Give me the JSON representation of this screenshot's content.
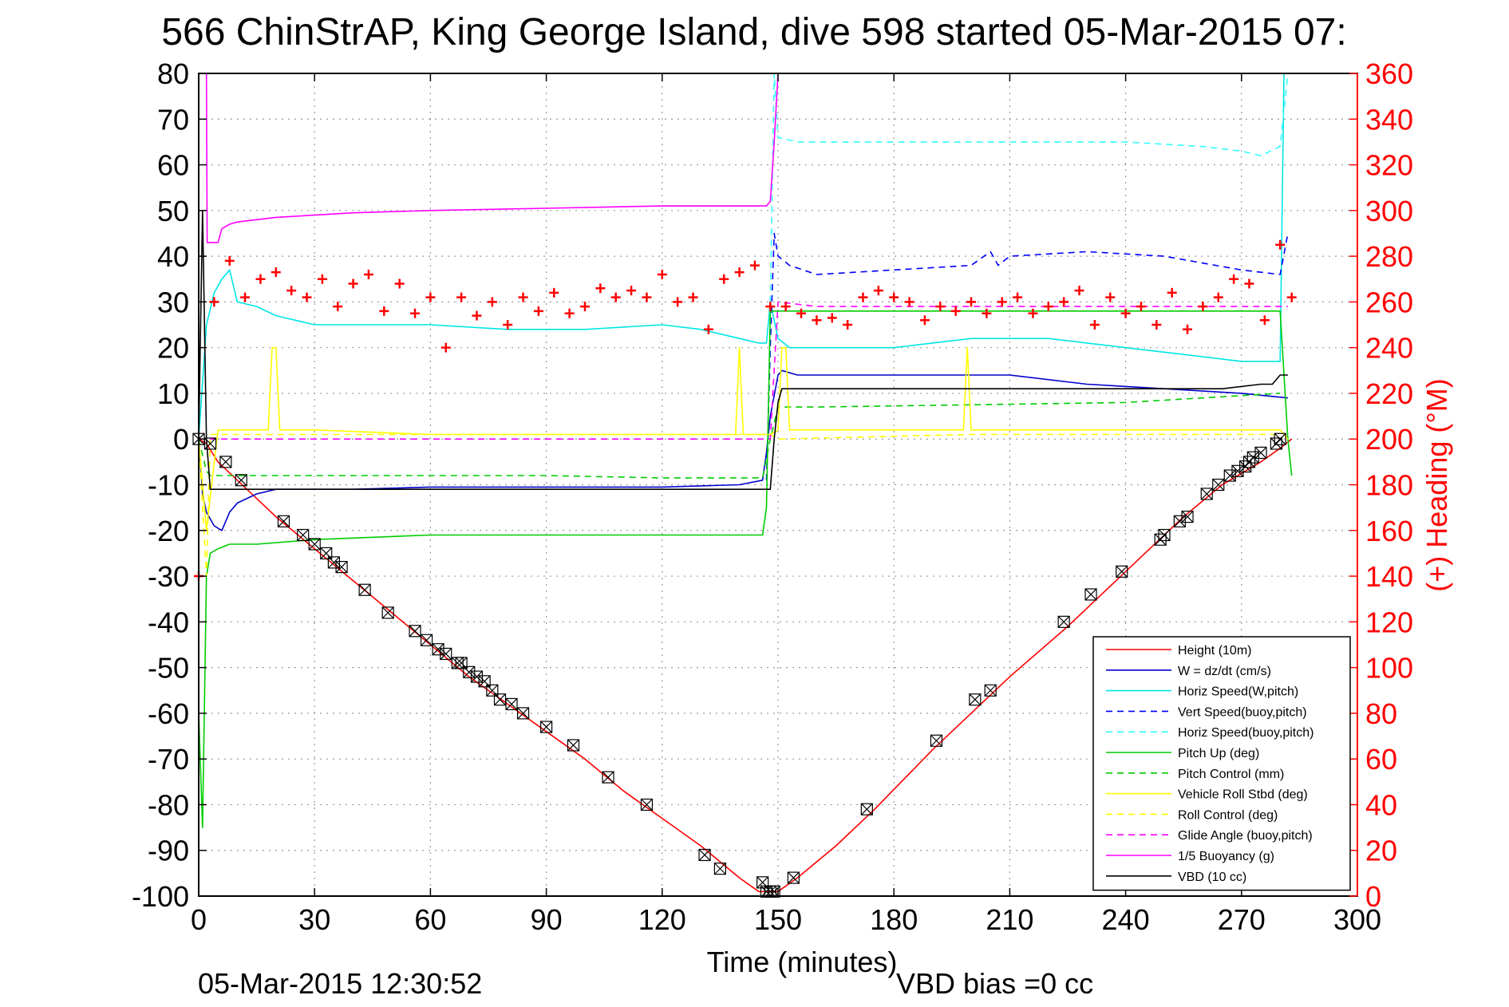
{
  "figure": {
    "title": "566 ChinStrAP, King George Island, dive 598 started 05-Mar-2015 07:",
    "timestamp": "05-Mar-2015 12:30:52",
    "vbd_bias": "VBD bias =0 cc"
  },
  "colors": {
    "height": "#ff0000",
    "w": "#0000cc",
    "horiz_speed": "#00e5e5",
    "vert_speed_buoy": "#0000ff",
    "horiz_speed_buoy": "#33ffff",
    "pitch_up": "#00cc00",
    "pitch_control": "#00cc00",
    "roll": "#ffff00",
    "roll_control": "#ffff00",
    "glide_angle": "#ff00ff",
    "buoyancy": "#ff00ff",
    "vbd": "#000000",
    "heading": "#ff0000",
    "grid": "#999999"
  },
  "chart_data": {
    "type": "line",
    "xlabel": "Time (minutes)",
    "ylabel_right": "(+) Heading (°M)",
    "xlim": [
      0,
      300
    ],
    "ylim": [
      -100,
      80
    ],
    "ylim_right": [
      0,
      360
    ],
    "grid": true,
    "legend_position": "bottom-right",
    "x_ticks": [
      "0",
      "30",
      "60",
      "90",
      "120",
      "150",
      "180",
      "210",
      "240",
      "270",
      "300"
    ],
    "y_ticks": [
      "80",
      "70",
      "60",
      "50",
      "40",
      "30",
      "20",
      "10",
      "0",
      "-10",
      "-20",
      "-30",
      "-40",
      "-50",
      "-60",
      "-70",
      "-80",
      "-90",
      "-100"
    ],
    "y_right_ticks": [
      "360",
      "340",
      "320",
      "300",
      "280",
      "260",
      "240",
      "220",
      "200",
      "180",
      "160",
      "140",
      "120",
      "100",
      "80",
      "60",
      "40",
      "20",
      "0"
    ],
    "series": [
      {
        "key": "height",
        "name": "Height (10m)",
        "style": "solid",
        "x": [
          0,
          2,
          5,
          10,
          20,
          30,
          40,
          50,
          60,
          70,
          80,
          90,
          100,
          110,
          120,
          130,
          140,
          145,
          148,
          150,
          155,
          165,
          175,
          190,
          200,
          210,
          225,
          240,
          255,
          265,
          275,
          280,
          283
        ],
        "y": [
          0,
          -1,
          -5,
          -9,
          -17,
          -24,
          -31,
          -38,
          -45,
          -52,
          -58,
          -64,
          -70,
          -77,
          -83,
          -89,
          -96,
          -99,
          -99,
          -99,
          -96,
          -89,
          -81,
          -68,
          -60,
          -52,
          -41,
          -29,
          -17,
          -10,
          -5,
          -2,
          0
        ]
      },
      {
        "key": "w",
        "name": "W = dz/dt (cm/s)",
        "style": "solid",
        "x": [
          0,
          1,
          2,
          4,
          6,
          8,
          10,
          15,
          20,
          30,
          40,
          60,
          80,
          100,
          120,
          140,
          146,
          147,
          148,
          150,
          151,
          155,
          165,
          180,
          200,
          210,
          230,
          250,
          270,
          282
        ],
        "y": [
          0,
          -12,
          -16,
          -19,
          -20,
          -16,
          -14,
          -12,
          -11,
          -11,
          -11,
          -10.5,
          -10.5,
          -10.5,
          -10.5,
          -10,
          -9,
          -3,
          5,
          14,
          15,
          14,
          14,
          14,
          14,
          14,
          12,
          11,
          10,
          9
        ]
      },
      {
        "key": "horiz_speed",
        "name": "Horiz Speed(W,pitch)",
        "style": "solid",
        "x": [
          0,
          2,
          4,
          6,
          8,
          10,
          15,
          20,
          30,
          40,
          60,
          80,
          100,
          120,
          130,
          140,
          145,
          147,
          148,
          150,
          153,
          160,
          180,
          200,
          220,
          240,
          260,
          270,
          280,
          281,
          282
        ],
        "y": [
          0,
          25,
          32,
          35,
          37,
          30,
          29,
          27,
          25,
          25,
          25,
          24,
          24,
          25,
          24,
          22,
          21,
          21,
          30,
          22,
          20,
          20,
          20,
          22,
          22,
          20,
          18,
          17,
          17,
          80,
          80
        ]
      },
      {
        "key": "vert_speed_buoy",
        "name": "Vert Speed(buoy,pitch)",
        "style": "dashed",
        "x": [
          147,
          148,
          149,
          150,
          153,
          160,
          180,
          200,
          205,
          207,
          210,
          230,
          250,
          270,
          280,
          282
        ],
        "y": [
          -9,
          20,
          45,
          40,
          38,
          36,
          37,
          38,
          41,
          38,
          40,
          41,
          40,
          37,
          36,
          45
        ]
      },
      {
        "key": "horiz_speed_buoy",
        "name": "Horiz Speed(buoy,pitch)",
        "style": "dashed",
        "x": [
          148,
          149,
          150,
          155,
          170,
          200,
          220,
          240,
          260,
          270,
          275,
          280,
          282
        ],
        "y": [
          30,
          80,
          66,
          65,
          65,
          65,
          65,
          65,
          64,
          63,
          62,
          64,
          80
        ]
      },
      {
        "key": "pitch_up",
        "name": "Pitch Up (deg)",
        "style": "solid",
        "x": [
          0,
          1,
          2,
          3,
          5,
          8,
          15,
          30,
          60,
          90,
          120,
          140,
          146,
          147,
          148,
          150,
          155,
          180,
          220,
          260,
          280,
          282,
          283
        ],
        "y": [
          -60,
          -85,
          -30,
          -25,
          -24,
          -23,
          -23,
          -22,
          -21,
          -21,
          -21,
          -21,
          -21,
          -15,
          28,
          28,
          28,
          28,
          28,
          28,
          28,
          0,
          -8
        ]
      },
      {
        "key": "pitch_control",
        "name": "Pitch Control (mm)",
        "style": "dashed",
        "x": [
          0,
          2,
          3,
          30,
          60,
          90,
          120,
          146,
          148,
          150,
          160,
          200,
          240,
          280
        ],
        "y": [
          0,
          -7,
          -8,
          -8,
          -8,
          -8,
          -8.5,
          -8.5,
          0,
          7,
          7,
          7.5,
          8,
          10
        ]
      },
      {
        "key": "roll",
        "name": "Vehicle Roll Stbd (deg)",
        "style": "solid",
        "x": [
          0,
          2,
          5,
          10,
          18,
          19,
          20,
          21,
          30,
          60,
          90,
          120,
          139,
          140,
          141,
          148,
          150,
          151,
          152,
          153,
          170,
          198,
          199,
          200,
          201,
          230,
          240,
          280,
          282
        ],
        "y": [
          0,
          -20,
          2,
          2,
          2,
          20,
          20,
          2,
          2,
          1,
          1,
          1,
          1,
          20,
          1,
          1,
          2,
          20,
          20,
          2,
          2,
          2,
          20,
          2,
          2,
          2,
          2,
          2,
          0
        ]
      },
      {
        "key": "roll_control",
        "name": "Roll Control (deg)",
        "style": "dashed",
        "x": [
          0,
          2,
          3,
          30,
          60,
          90,
          120,
          148,
          150,
          200,
          250,
          280
        ],
        "y": [
          0,
          -30,
          1,
          1,
          1,
          1,
          1,
          1,
          0,
          1,
          1,
          1
        ]
      },
      {
        "key": "glide_angle",
        "name": "Glide Angle (buoy,pitch)",
        "style": "dashed",
        "x": [
          0,
          2,
          30,
          60,
          90,
          120,
          148,
          150,
          160,
          200,
          240,
          280,
          282
        ],
        "y": [
          0,
          0,
          0,
          0,
          0,
          0,
          0,
          30,
          29,
          29,
          29,
          29,
          29
        ]
      },
      {
        "key": "buoyancy",
        "name": "1/5 Buoyancy (g)",
        "style": "solid",
        "x": [
          2,
          2.2,
          3,
          5,
          6,
          8,
          10,
          20,
          30,
          40,
          60,
          90,
          120,
          147,
          148,
          149,
          150
        ],
        "y": [
          80,
          43,
          43,
          43,
          46,
          47,
          47.5,
          48.5,
          49,
          49.5,
          50,
          50.5,
          51,
          51,
          52,
          65,
          80
        ]
      },
      {
        "key": "vbd",
        "name": "VBD (10 cc)",
        "style": "solid",
        "x": [
          0,
          1,
          2,
          3,
          147,
          148,
          149,
          150,
          151,
          152,
          153,
          200,
          210,
          250,
          265,
          275,
          278,
          280,
          282
        ],
        "y": [
          0,
          50,
          0,
          -11,
          -11,
          -11,
          0,
          8,
          11,
          11,
          11,
          11,
          11,
          11,
          11,
          12,
          12,
          14,
          14
        ]
      }
    ],
    "heading_series": {
      "name": "(+) Heading (°M)",
      "axis": "right",
      "x": [
        0,
        4,
        8,
        12,
        16,
        20,
        24,
        28,
        32,
        36,
        40,
        44,
        48,
        52,
        56,
        60,
        64,
        68,
        72,
        76,
        80,
        84,
        88,
        92,
        96,
        100,
        104,
        108,
        112,
        116,
        120,
        124,
        128,
        132,
        136,
        140,
        144,
        148,
        152,
        156,
        160,
        164,
        168,
        172,
        176,
        180,
        184,
        188,
        192,
        196,
        200,
        204,
        208,
        212,
        216,
        220,
        224,
        228,
        232,
        236,
        240,
        244,
        248,
        252,
        256,
        260,
        264,
        268,
        272,
        276,
        280,
        283
      ],
      "y": [
        140,
        260,
        278,
        262,
        270,
        273,
        265,
        262,
        270,
        258,
        268,
        272,
        256,
        268,
        255,
        262,
        240,
        262,
        254,
        260,
        250,
        262,
        256,
        264,
        255,
        258,
        266,
        262,
        265,
        262,
        272,
        260,
        262,
        248,
        270,
        273,
        276,
        258,
        258,
        255,
        252,
        253,
        250,
        262,
        265,
        262,
        260,
        252,
        258,
        256,
        260,
        255,
        260,
        262,
        255,
        258,
        260,
        265,
        250,
        262,
        255,
        258,
        250,
        264,
        248,
        258,
        262,
        270,
        268,
        252,
        285,
        262
      ]
    },
    "markers": {
      "name": "Height (10m) markers",
      "x": [
        0,
        3,
        7,
        11,
        22,
        27,
        30,
        33,
        35,
        37,
        43,
        49,
        56,
        59,
        62,
        64,
        67,
        68,
        70,
        72,
        74,
        76,
        78,
        81,
        84,
        90,
        97,
        106,
        116,
        131,
        135,
        146,
        147,
        148,
        149,
        154,
        173,
        191,
        201,
        205,
        224,
        231,
        239,
        249,
        250,
        254,
        256,
        261,
        264,
        267,
        269,
        271,
        272,
        273,
        275,
        279,
        280
      ],
      "y": [
        0,
        -1,
        -5,
        -9,
        -18,
        -21,
        -23,
        -25,
        -27,
        -28,
        -33,
        -38,
        -42,
        -44,
        -46,
        -47,
        -49,
        -49,
        -51,
        -52,
        -53,
        -55,
        -57,
        -58,
        -60,
        -63,
        -67,
        -74,
        -80,
        -91,
        -94,
        -97,
        -99,
        -99,
        -99,
        -96,
        -81,
        -66,
        -57,
        -55,
        -40,
        -34,
        -29,
        -22,
        -21,
        -18,
        -17,
        -12,
        -10,
        -8,
        -7,
        -6,
        -5,
        -4,
        -3,
        -1,
        0
      ]
    }
  },
  "legend": [
    {
      "label": "Height (10m)",
      "key": "height",
      "style": "solid"
    },
    {
      "label": "W = dz/dt (cm/s)",
      "key": "w",
      "style": "solid"
    },
    {
      "label": "Horiz Speed(W,pitch)",
      "key": "horiz_speed",
      "style": "solid"
    },
    {
      "label": "Vert Speed(buoy,pitch)",
      "key": "vert_speed_buoy",
      "style": "dashed"
    },
    {
      "label": "Horiz Speed(buoy,pitch)",
      "key": "horiz_speed_buoy",
      "style": "dashed"
    },
    {
      "label": "Pitch Up (deg)",
      "key": "pitch_up",
      "style": "solid"
    },
    {
      "label": "Pitch Control (mm)",
      "key": "pitch_control",
      "style": "dashed"
    },
    {
      "label": "Vehicle Roll Stbd (deg)",
      "key": "roll",
      "style": "solid"
    },
    {
      "label": "Roll Control (deg)",
      "key": "roll_control",
      "style": "dashed"
    },
    {
      "label": "Glide Angle (buoy,pitch)",
      "key": "glide_angle",
      "style": "dashed"
    },
    {
      "label": "1/5 Buoyancy (g)",
      "key": "buoyancy",
      "style": "solid"
    },
    {
      "label": "VBD (10 cc)",
      "key": "vbd",
      "style": "solid"
    }
  ]
}
